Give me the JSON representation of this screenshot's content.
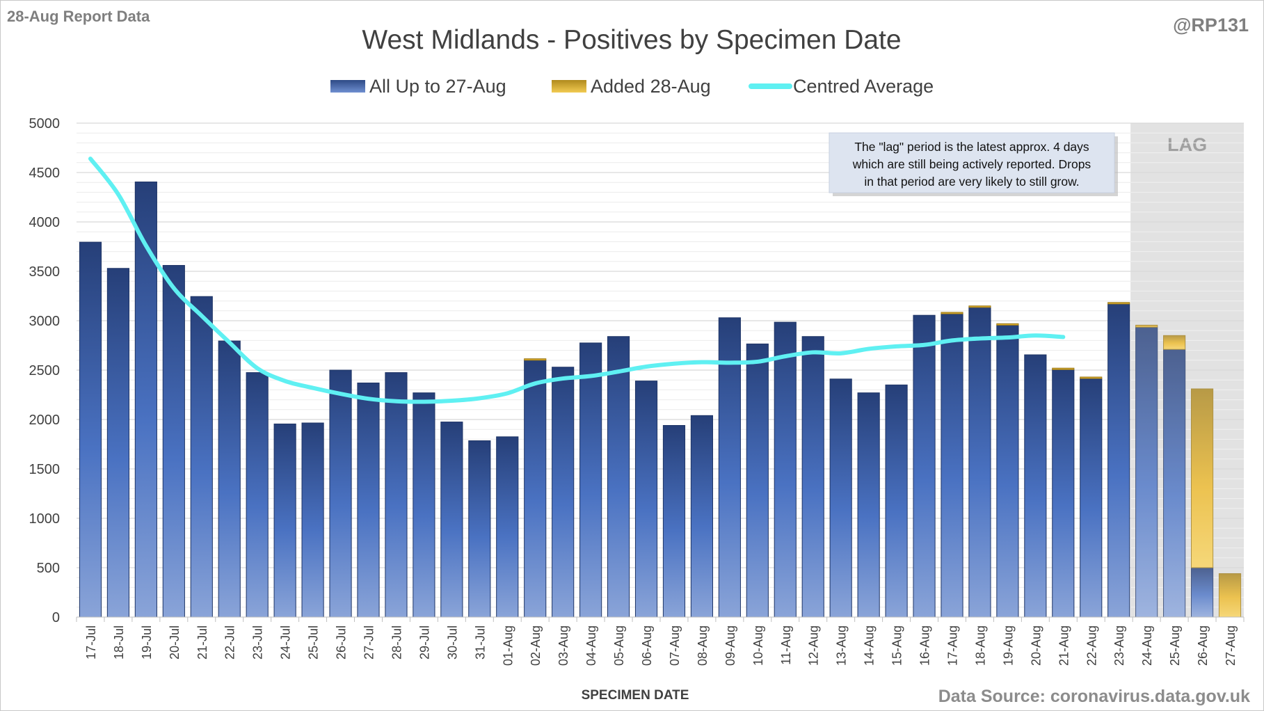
{
  "chart_data": {
    "type": "bar",
    "subtype": "stacked-bar-with-line",
    "corner_left": "28-Aug Report Data",
    "corner_right": "@RP131",
    "title": "West Midlands - Positives by Specimen Date",
    "xlabel": "SPECIMEN DATE",
    "ylabel": "",
    "ylim": [
      0,
      5000
    ],
    "yticks": [
      0,
      500,
      1000,
      1500,
      2000,
      2500,
      3000,
      3500,
      4000,
      4500,
      5000
    ],
    "grid": true,
    "legend_position": "top-center",
    "categories": [
      "17-Jul",
      "18-Jul",
      "19-Jul",
      "20-Jul",
      "21-Jul",
      "22-Jul",
      "23-Jul",
      "24-Jul",
      "25-Jul",
      "26-Jul",
      "27-Jul",
      "28-Jul",
      "29-Jul",
      "30-Jul",
      "31-Jul",
      "01-Aug",
      "02-Aug",
      "03-Aug",
      "04-Aug",
      "05-Aug",
      "06-Aug",
      "07-Aug",
      "08-Aug",
      "09-Aug",
      "10-Aug",
      "11-Aug",
      "12-Aug",
      "13-Aug",
      "14-Aug",
      "15-Aug",
      "16-Aug",
      "17-Aug",
      "18-Aug",
      "19-Aug",
      "20-Aug",
      "21-Aug",
      "22-Aug",
      "23-Aug",
      "24-Aug",
      "25-Aug",
      "26-Aug",
      "27-Aug"
    ],
    "series": [
      {
        "name": "All Up to 27-Aug",
        "kind": "bar",
        "color": "#2e4a86",
        "values": [
          3795,
          3530,
          4405,
          3560,
          3245,
          2795,
          2475,
          1955,
          1965,
          2500,
          2370,
          2475,
          2270,
          1975,
          1785,
          1825,
          2600,
          2530,
          2775,
          2840,
          2390,
          1940,
          2040,
          3030,
          2765,
          2985,
          2840,
          2410,
          2270,
          2350,
          3055,
          3070,
          3135,
          2955,
          2655,
          2505,
          2415,
          3170,
          2935,
          2710,
          500,
          0
        ]
      },
      {
        "name": "Added 28-Aug",
        "kind": "bar",
        "color": "#e8b52a",
        "values": [
          0,
          0,
          0,
          0,
          0,
          0,
          0,
          0,
          0,
          0,
          0,
          0,
          0,
          0,
          0,
          0,
          15,
          0,
          0,
          0,
          0,
          0,
          0,
          0,
          0,
          0,
          0,
          0,
          0,
          0,
          0,
          15,
          15,
          15,
          0,
          15,
          15,
          15,
          20,
          140,
          1810,
          440
        ]
      },
      {
        "name": "Centred Average",
        "kind": "line",
        "color": "#5ff0f2",
        "values": [
          4640,
          4280,
          3760,
          3330,
          3050,
          2780,
          2520,
          2390,
          2320,
          2260,
          2210,
          2185,
          2180,
          2190,
          2215,
          2265,
          2365,
          2415,
          2440,
          2485,
          2535,
          2565,
          2580,
          2575,
          2585,
          2640,
          2680,
          2670,
          2715,
          2740,
          2755,
          2800,
          2820,
          2830,
          2850,
          2835,
          null,
          null,
          null,
          null,
          null,
          null
        ]
      }
    ],
    "lag_region": {
      "label": "LAG",
      "from": "24-Aug",
      "to": "27-Aug"
    },
    "annotation": {
      "lines": [
        "The \"lag\" period is the latest approx. 4 days",
        "which are still being actively reported.  Drops",
        "in that period are very likely to still grow."
      ]
    },
    "source": "Data Source: coronavirus.data.gov.uk"
  },
  "colors": {
    "all_up": "#2e4a86",
    "added": "#e8b52a",
    "average": "#5ff0f2",
    "lag_shade": "#dcdcdc",
    "grid": "#d9d9d9"
  }
}
